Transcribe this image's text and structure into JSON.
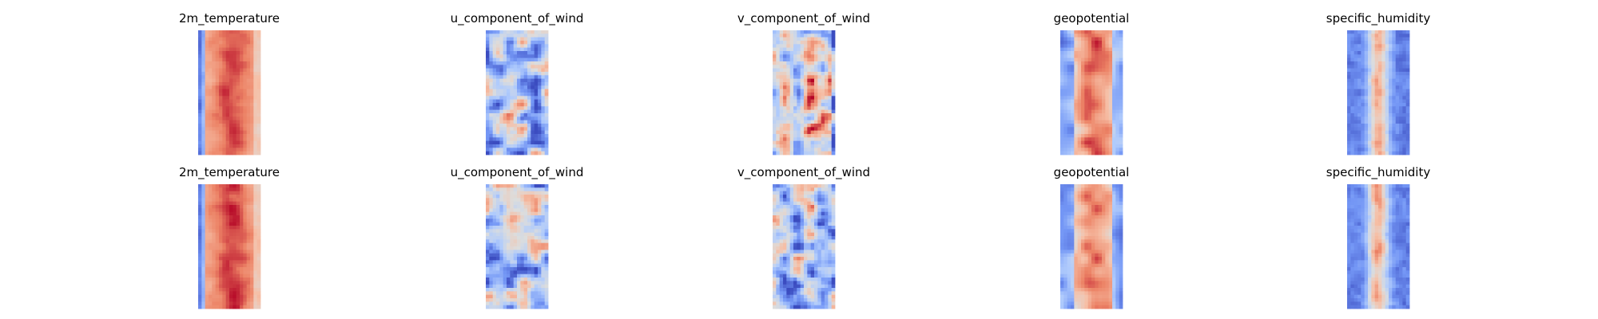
{
  "chart_data": {
    "type": "heatmap",
    "colormap": "coolwarm",
    "colormap_colors": [
      "#3b4cc0",
      "#7396f5",
      "#b0cbfc",
      "#dcdddd",
      "#f6bfa6",
      "#ec8265",
      "#b40426"
    ],
    "rows": 2,
    "columns": 5,
    "panels": [
      {
        "row": 0,
        "title": "2m_temperature",
        "pattern": "temperature",
        "seed": 11
      },
      {
        "row": 0,
        "title": "u_component_of_wind",
        "pattern": "uwind",
        "seed": 23
      },
      {
        "row": 0,
        "title": "v_component_of_wind",
        "pattern": "vwind_warm",
        "seed": 37
      },
      {
        "row": 0,
        "title": "geopotential",
        "pattern": "geopotential",
        "seed": 41
      },
      {
        "row": 0,
        "title": "specific_humidity",
        "pattern": "humidity",
        "seed": 53
      },
      {
        "row": 1,
        "title": "2m_temperature",
        "pattern": "temperature",
        "seed": 61
      },
      {
        "row": 1,
        "title": "u_component_of_wind",
        "pattern": "uwind",
        "seed": 73
      },
      {
        "row": 1,
        "title": "v_component_of_wind",
        "pattern": "vwind_cool",
        "seed": 89
      },
      {
        "row": 1,
        "title": "geopotential",
        "pattern": "geopotential",
        "seed": 97
      },
      {
        "row": 1,
        "title": "specific_humidity",
        "pattern": "humidity",
        "seed": 101
      }
    ]
  }
}
